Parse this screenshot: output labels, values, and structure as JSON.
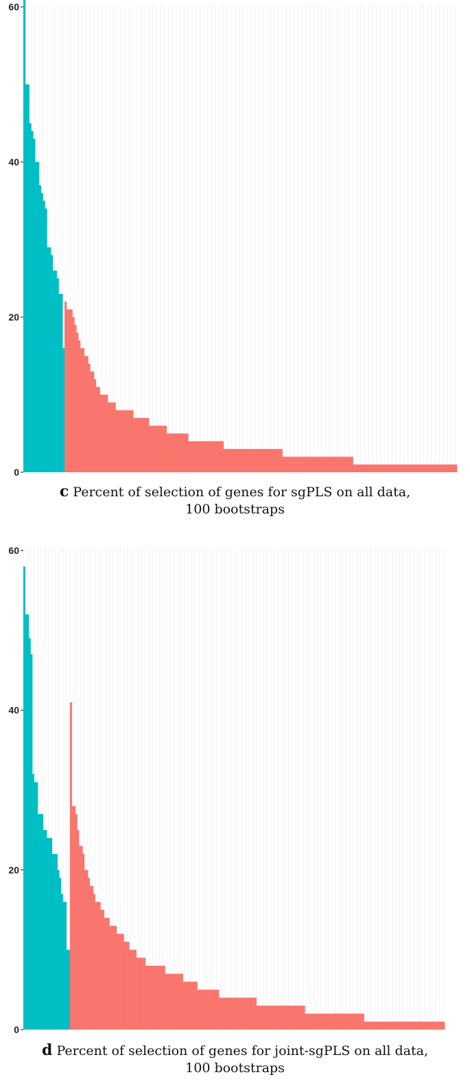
{
  "colors": {
    "cyan": "#00BFC4",
    "red": "#F8766D",
    "axis": "#333333"
  },
  "captions": [
    {
      "letter": "c",
      "line1": "Percent of selection of genes for sgPLS on all data,",
      "line2": "100 bootstraps"
    },
    {
      "letter": "d",
      "line1": "Percent of selection of genes for joint-sgPLS on all data,",
      "line2": "100 bootstraps"
    }
  ],
  "chart_data": [
    {
      "type": "bar",
      "title": "",
      "xlabel": "",
      "ylabel": "",
      "ylim": [
        0,
        60
      ],
      "y_ticks": [
        0,
        20,
        40,
        60
      ],
      "y_tick_labels": [
        "0",
        "20",
        "40",
        "60"
      ],
      "x_tick_labels": "none",
      "grid": "vertical lines only",
      "legend": "none",
      "groups": [
        {
          "color": "cyan",
          "values": [
            62,
            50,
            50,
            45,
            44,
            43,
            40,
            40,
            37,
            36,
            35,
            34,
            29,
            29,
            28,
            26,
            26,
            25,
            23,
            23,
            16
          ]
        },
        {
          "color": "red",
          "values": [
            22,
            21,
            21,
            21,
            20,
            19,
            18,
            17,
            16,
            16,
            15,
            15,
            14,
            13,
            13,
            12,
            11,
            11,
            10,
            10,
            10,
            10,
            9,
            9,
            9,
            9,
            8,
            8,
            8,
            8,
            8,
            8,
            8,
            8,
            8,
            7,
            7,
            7,
            7,
            7,
            7,
            7,
            7,
            6,
            6,
            6,
            6,
            6,
            6,
            6,
            6,
            6,
            5,
            5,
            5,
            5,
            5,
            5,
            5,
            5,
            5,
            5,
            5,
            4,
            4,
            4,
            4,
            4,
            4,
            4,
            4,
            4,
            4,
            4,
            4,
            4,
            4,
            4,
            4,
            4,
            4,
            3,
            3,
            3,
            3,
            3,
            3,
            3,
            3,
            3,
            3,
            3,
            3,
            3,
            3,
            3,
            3,
            3,
            3,
            3,
            3,
            3,
            3,
            3,
            3,
            3,
            3,
            3,
            3,
            3,
            3,
            2,
            2,
            2,
            2,
            2,
            2,
            2,
            2,
            2,
            2,
            2,
            2,
            2,
            2,
            2,
            2,
            2,
            2,
            2,
            2,
            2,
            2,
            2,
            2,
            2,
            2,
            2,
            2,
            2,
            2,
            2,
            2,
            2,
            2,
            2,
            2,
            1,
            1,
            1,
            1,
            1,
            1,
            1,
            1,
            1,
            1,
            1,
            1,
            1,
            1,
            1,
            1,
            1,
            1,
            1,
            1,
            1,
            1,
            1,
            1,
            1,
            1,
            1,
            1,
            1,
            1,
            1,
            1,
            1,
            1,
            1,
            1,
            1,
            1,
            1,
            1,
            1,
            1,
            1,
            1,
            1,
            1,
            1,
            1,
            1,
            1,
            1,
            1,
            1
          ]
        }
      ]
    },
    {
      "type": "bar",
      "title": "",
      "xlabel": "",
      "ylabel": "",
      "ylim": [
        0,
        60
      ],
      "y_ticks": [
        0,
        20,
        40,
        60
      ],
      "y_tick_labels": [
        "0",
        "20",
        "40",
        "60"
      ],
      "x_tick_labels": "none",
      "grid": "vertical lines only",
      "legend": "none",
      "groups": [
        {
          "color": "cyan",
          "values": [
            58,
            52,
            52,
            49,
            47,
            32,
            31,
            31,
            27,
            27,
            27,
            25,
            25,
            24,
            24,
            24,
            22,
            22,
            22,
            20,
            19,
            17,
            16,
            16,
            10,
            10
          ]
        },
        {
          "color": "red",
          "values": [
            41,
            28,
            28,
            27,
            25,
            23,
            23,
            22,
            20,
            20,
            19,
            18,
            18,
            17,
            16,
            16,
            16,
            15,
            15,
            14,
            14,
            14,
            13,
            13,
            13,
            13,
            12,
            12,
            12,
            12,
            11,
            11,
            11,
            10,
            10,
            10,
            10,
            9,
            9,
            9,
            9,
            9,
            8,
            8,
            8,
            8,
            8,
            8,
            8,
            8,
            8,
            8,
            8,
            7,
            7,
            7,
            7,
            7,
            7,
            7,
            7,
            7,
            7,
            6,
            6,
            6,
            6,
            6,
            6,
            6,
            6,
            5,
            5,
            5,
            5,
            5,
            5,
            5,
            5,
            5,
            5,
            5,
            5,
            4,
            4,
            4,
            4,
            4,
            4,
            4,
            4,
            4,
            4,
            4,
            4,
            4,
            4,
            4,
            4,
            4,
            4,
            4,
            4,
            4,
            3,
            3,
            3,
            3,
            3,
            3,
            3,
            3,
            3,
            3,
            3,
            3,
            3,
            3,
            3,
            3,
            3,
            3,
            3,
            3,
            3,
            3,
            3,
            3,
            3,
            3,
            3,
            2,
            2,
            2,
            2,
            2,
            2,
            2,
            2,
            2,
            2,
            2,
            2,
            2,
            2,
            2,
            2,
            2,
            2,
            2,
            2,
            2,
            2,
            2,
            2,
            2,
            2,
            2,
            2,
            2,
            2,
            2,
            2,
            2,
            1,
            1,
            1,
            1,
            1,
            1,
            1,
            1,
            1,
            1,
            1,
            1,
            1,
            1,
            1,
            1,
            1,
            1,
            1,
            1,
            1,
            1,
            1,
            1,
            1,
            1,
            1,
            1,
            1,
            1,
            1,
            1,
            1,
            1,
            1,
            1,
            1,
            1,
            1,
            1,
            1,
            1,
            1,
            1,
            1
          ]
        }
      ]
    }
  ]
}
